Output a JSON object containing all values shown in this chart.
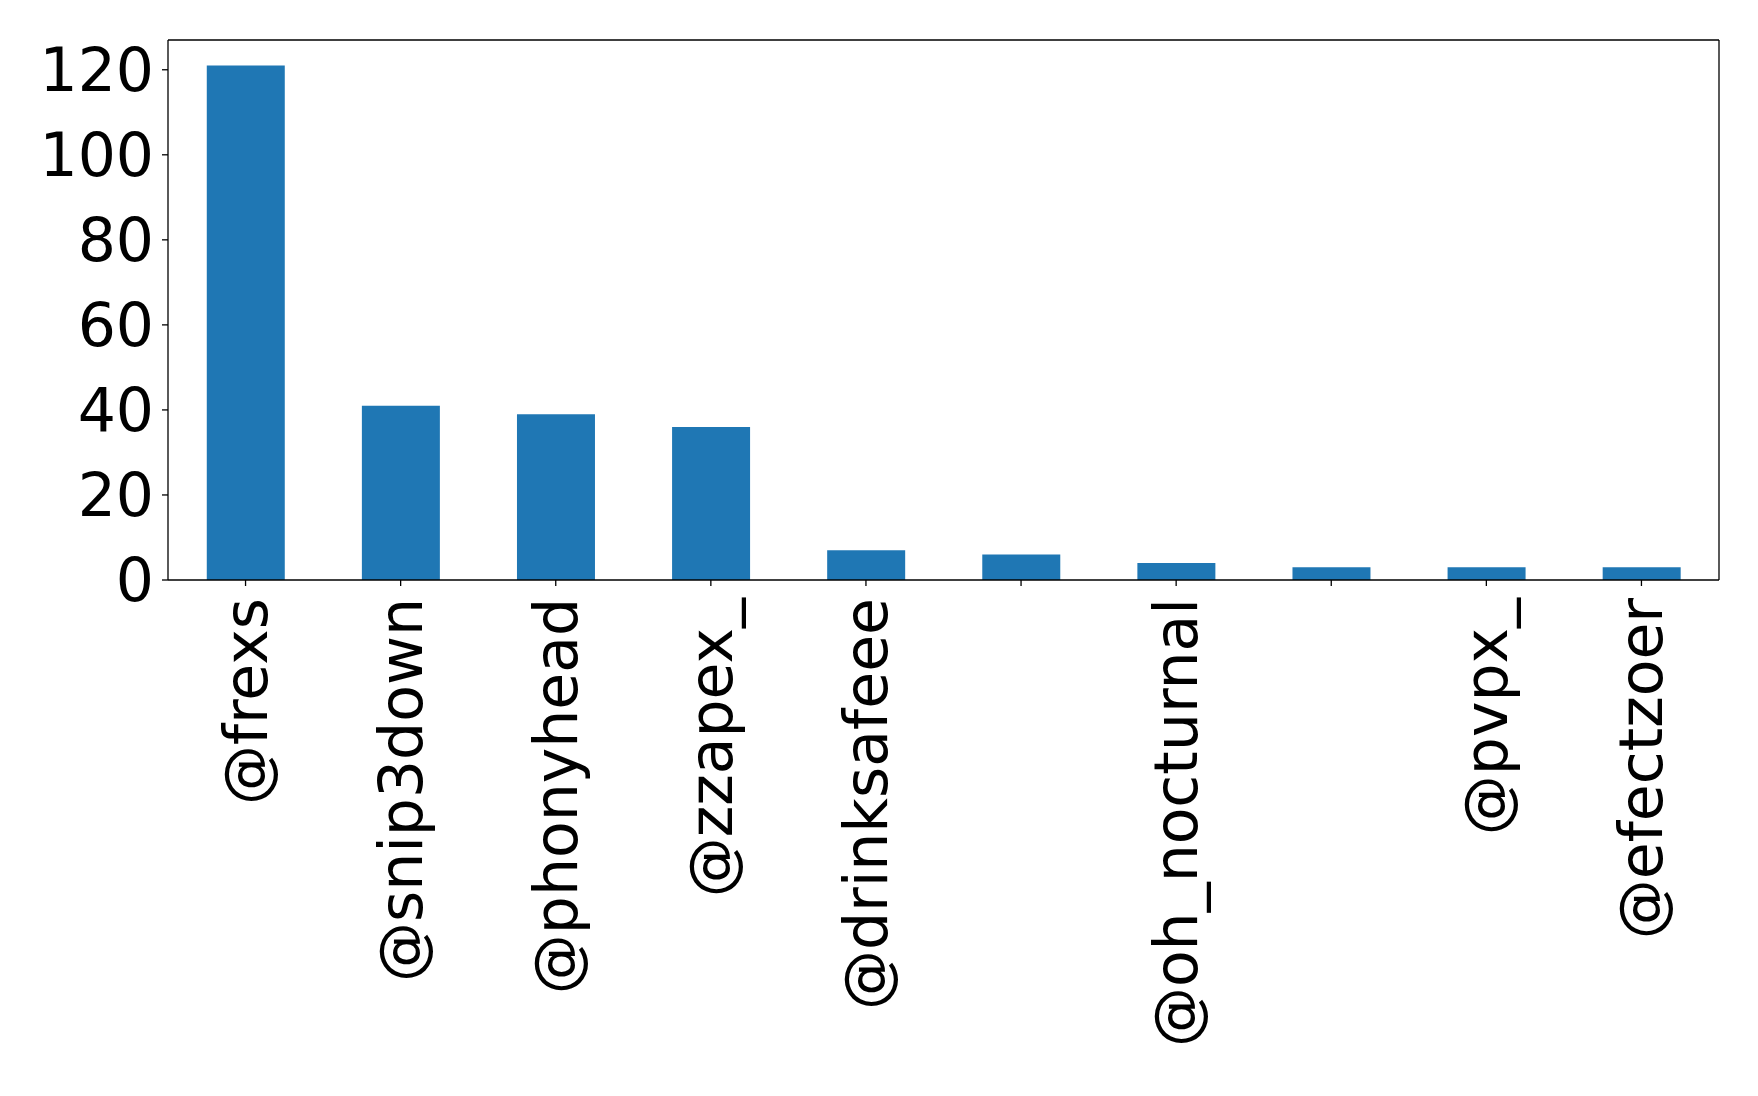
{
  "chart_data": {
    "type": "bar",
    "categories": [
      "@frexs",
      "@snip3down",
      "@phonyhead",
      "@zzapex_",
      "@drinksafeee",
      null,
      "@oh_nocturnal",
      null,
      "@pvpx_",
      "@efectzoer"
    ],
    "values": [
      121,
      41,
      39,
      36,
      7,
      6,
      4,
      3,
      3,
      3
    ],
    "color": "#1f77b4",
    "ylim": [
      0,
      127
    ],
    "yticks": [
      0,
      20,
      40,
      60,
      80,
      100,
      120
    ]
  }
}
